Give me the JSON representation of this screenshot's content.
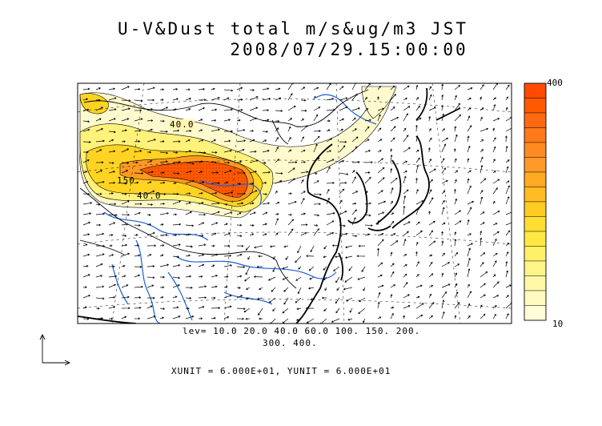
{
  "title_line1": "U-V&Dust total m/s&ug/m3 JST",
  "title_line2": "2008/07/29.15:00:00",
  "contour_labels": [
    "40.0",
    "150",
    "40.0"
  ],
  "colorbar": {
    "max_label": "400",
    "min_label": "10",
    "colors": [
      "#ff4a00",
      "#ff5a00",
      "#ff6a10",
      "#ff7a1a",
      "#ff8a22",
      "#ff9a2a",
      "#ffaa22",
      "#ffbb22",
      "#ffcc22",
      "#ffdd33",
      "#ffe844",
      "#fff066",
      "#fff488",
      "#fff7a8",
      "#fffac0",
      "#fffcd8"
    ]
  },
  "levels_text_line1": "lev= 10.0 20.0 40.0 60.0 100. 150. 200.",
  "levels_text_line2": "300. 400.",
  "unit_text": "XUNIT = 6.000E+01, YUNIT = 6.000E+01"
}
